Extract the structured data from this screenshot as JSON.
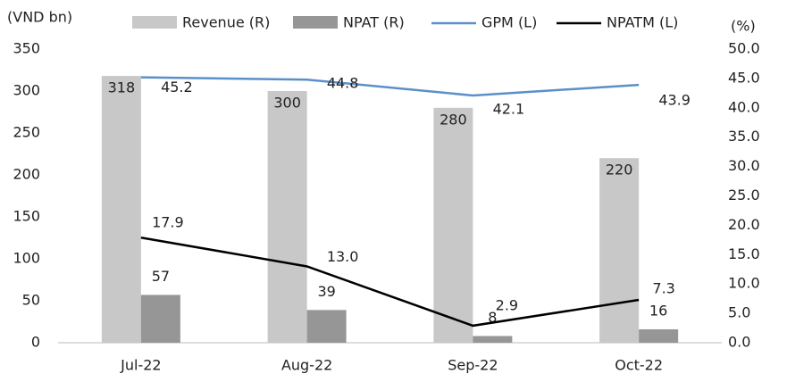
{
  "chart_data": {
    "type": "bar-line",
    "y_label": "(VND bn)",
    "y2_label": "(%)",
    "categories": [
      "Jul-22",
      "Aug-22",
      "Sep-22",
      "Oct-22"
    ],
    "ylim": [
      0,
      350
    ],
    "yticks": [
      0,
      50,
      100,
      150,
      200,
      250,
      300,
      350
    ],
    "y2lim": [
      0,
      50
    ],
    "y2ticks": [
      {
        "value": 0,
        "label": "0.0"
      },
      {
        "value": 5,
        "label": "5.0"
      },
      {
        "value": 10,
        "label": "10.0"
      },
      {
        "value": 15,
        "label": "15.0"
      },
      {
        "value": 20,
        "label": "20.0"
      },
      {
        "value": 25,
        "label": "25.0"
      },
      {
        "value": 30,
        "label": "30.0"
      },
      {
        "value": 35,
        "label": "35.0"
      },
      {
        "value": 40,
        "label": "40.0"
      },
      {
        "value": 45,
        "label": "45.0"
      },
      {
        "value": 50,
        "label": "50.0"
      }
    ],
    "series": [
      {
        "name": "Revenue (R)",
        "type": "bar",
        "color": "#c8c8c8",
        "values": [
          318,
          300,
          280,
          220
        ]
      },
      {
        "name": "NPAT (R)",
        "type": "bar",
        "color": "#969696",
        "values": [
          57,
          39,
          8,
          16
        ]
      },
      {
        "name": "GPM (L)",
        "type": "line",
        "axis": "y2",
        "color": "#5b8fc9",
        "values": [
          45.2,
          44.8,
          42.1,
          43.9
        ]
      },
      {
        "name": "NPATM (L)",
        "type": "line",
        "axis": "y2",
        "color": "#000000",
        "values": [
          17.9,
          13,
          2.9,
          7.3
        ],
        "value_labels": [
          "17.9",
          "13.0",
          "2.9",
          "7.3"
        ]
      }
    ]
  }
}
